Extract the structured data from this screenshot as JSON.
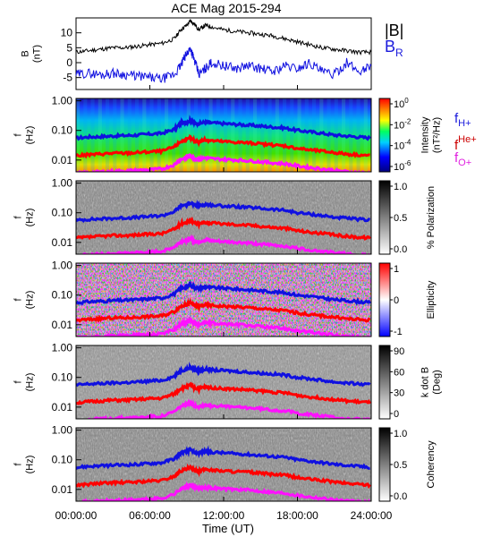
{
  "title": "ACE Mag 2015-294",
  "colors": {
    "black": "#000000",
    "blue": "#1010e0",
    "red": "#ff0000",
    "magenta": "#ff10ff",
    "blue_label": "#1a1adc",
    "red_label": "#cc0000",
    "magenta_label": "#e020e0"
  },
  "chart_data": [
    {
      "type": "line",
      "ylabel": "B\n(nT)",
      "ylim": [
        -9,
        15
      ],
      "yticks": [
        {
          "label": "10",
          "value": 10
        },
        {
          "label": "5",
          "value": 5
        },
        {
          "label": "0",
          "value": 0
        },
        {
          "label": "-5",
          "value": -5
        }
      ],
      "series": [
        {
          "name": "|B|",
          "color": "black",
          "x": [
            0,
            1,
            2,
            3,
            4,
            5,
            6,
            7,
            8,
            8.5,
            9,
            9.3,
            9.6,
            10,
            10.5,
            11,
            12,
            13,
            14,
            15,
            16,
            17,
            18,
            19,
            20,
            21,
            22,
            23,
            24
          ],
          "values": [
            3.5,
            4,
            4.5,
            5,
            5,
            5.5,
            6,
            6.5,
            8,
            11,
            12.5,
            14,
            13,
            11,
            12.5,
            12,
            11,
            10.5,
            10,
            9.5,
            9,
            8,
            7,
            6,
            5,
            4.5,
            4,
            3.5,
            3.5
          ]
        },
        {
          "name": "B_R",
          "color": "blue",
          "x": [
            0,
            1,
            2,
            3,
            4,
            5,
            6,
            7,
            8,
            8.5,
            9,
            9.3,
            9.6,
            10,
            10.5,
            11,
            12,
            13,
            14,
            15,
            16,
            17,
            18,
            19,
            20,
            21,
            22,
            23,
            24
          ],
          "values": [
            -4,
            -3.5,
            -4,
            -3.5,
            -4,
            -4.5,
            -5,
            -5.5,
            -4,
            -1,
            3,
            5,
            1,
            -4,
            -2,
            0,
            -1,
            -2,
            -1,
            -2,
            -3,
            -1,
            -2,
            0,
            -3,
            -4,
            0,
            -3,
            -1
          ]
        }
      ]
    },
    {
      "type": "heatmap",
      "ylabel": "f\n(Hz)",
      "cbar_label": "Intensity\n(nT²/Hz)",
      "cbar_ticks": [
        {
          "base": "10",
          "exp": "0"
        },
        {
          "base": "10",
          "exp": "-2"
        },
        {
          "base": "10",
          "exp": "-4"
        },
        {
          "base": "10",
          "exp": "-6"
        }
      ]
    },
    {
      "type": "heatmap",
      "ylabel": "f\n(Hz)",
      "cbar_label": "% Polarization",
      "cbar_ticks": [
        "1.0",
        "0.5",
        "0.0"
      ]
    },
    {
      "type": "heatmap",
      "ylabel": "f\n(Hz)",
      "cbar_label": "Ellipticity",
      "cbar_ticks": [
        "1",
        "0",
        "-1"
      ]
    },
    {
      "type": "heatmap",
      "ylabel": "f\n(Hz)",
      "cbar_label": "k dot B\n(Deg)",
      "cbar_ticks": [
        "90",
        "60",
        "30",
        "0"
      ]
    },
    {
      "type": "heatmap",
      "ylabel": "f\n(Hz)",
      "cbar_label": "Coherency",
      "cbar_ticks": [
        "1.0",
        "0.5",
        "0.0"
      ]
    }
  ],
  "freq_axis": {
    "ylim": [
      0.004,
      1.2
    ],
    "ticks": [
      {
        "label": "1.00",
        "value": 1.0
      },
      {
        "label": "0.10",
        "value": 0.1
      },
      {
        "label": "0.01",
        "value": 0.01
      }
    ]
  },
  "gyro_lines": {
    "x": [
      0,
      1,
      2,
      3,
      4,
      5,
      6,
      7,
      8,
      8.5,
      9,
      9.3,
      9.6,
      10,
      10.5,
      11,
      12,
      13,
      14,
      15,
      16,
      17,
      18,
      19,
      20,
      21,
      22,
      23,
      24
    ],
    "H+": [
      0.055,
      0.06,
      0.062,
      0.065,
      0.067,
      0.07,
      0.075,
      0.08,
      0.11,
      0.17,
      0.19,
      0.22,
      0.18,
      0.17,
      0.19,
      0.18,
      0.17,
      0.16,
      0.15,
      0.14,
      0.13,
      0.12,
      0.1,
      0.09,
      0.08,
      0.07,
      0.065,
      0.06,
      0.055
    ],
    "He+": [
      0.014,
      0.015,
      0.016,
      0.017,
      0.017,
      0.018,
      0.019,
      0.02,
      0.028,
      0.042,
      0.048,
      0.055,
      0.045,
      0.042,
      0.048,
      0.045,
      0.042,
      0.04,
      0.038,
      0.035,
      0.032,
      0.03,
      0.025,
      0.022,
      0.02,
      0.018,
      0.016,
      0.015,
      0.014
    ],
    "O+": [
      0.0036,
      0.0038,
      0.004,
      0.0042,
      0.0043,
      0.0045,
      0.0047,
      0.005,
      0.007,
      0.0105,
      0.012,
      0.0138,
      0.0112,
      0.0105,
      0.012,
      0.0112,
      0.0105,
      0.01,
      0.0095,
      0.0088,
      0.008,
      0.0075,
      0.0063,
      0.0056,
      0.005,
      0.0045,
      0.004,
      0.0038,
      0.0036
    ]
  },
  "legend": {
    "B": "|B|",
    "BR_main": "B",
    "BR_sub": "R",
    "fH_main": "f",
    "fH_sub": "H+",
    "fHe_main": "f",
    "fHe_sup": "He+",
    "fO_main": "f",
    "fO_sub": "O+"
  },
  "x_axis": {
    "xlim": [
      0,
      24
    ],
    "ticks": [
      {
        "label": "00:00:00",
        "value": 0
      },
      {
        "label": "06:00:00",
        "value": 6
      },
      {
        "label": "12:00:00",
        "value": 12
      },
      {
        "label": "18:00:00",
        "value": 18
      },
      {
        "label": "24:00:00",
        "value": 24
      }
    ],
    "label": "Time (UT)"
  }
}
